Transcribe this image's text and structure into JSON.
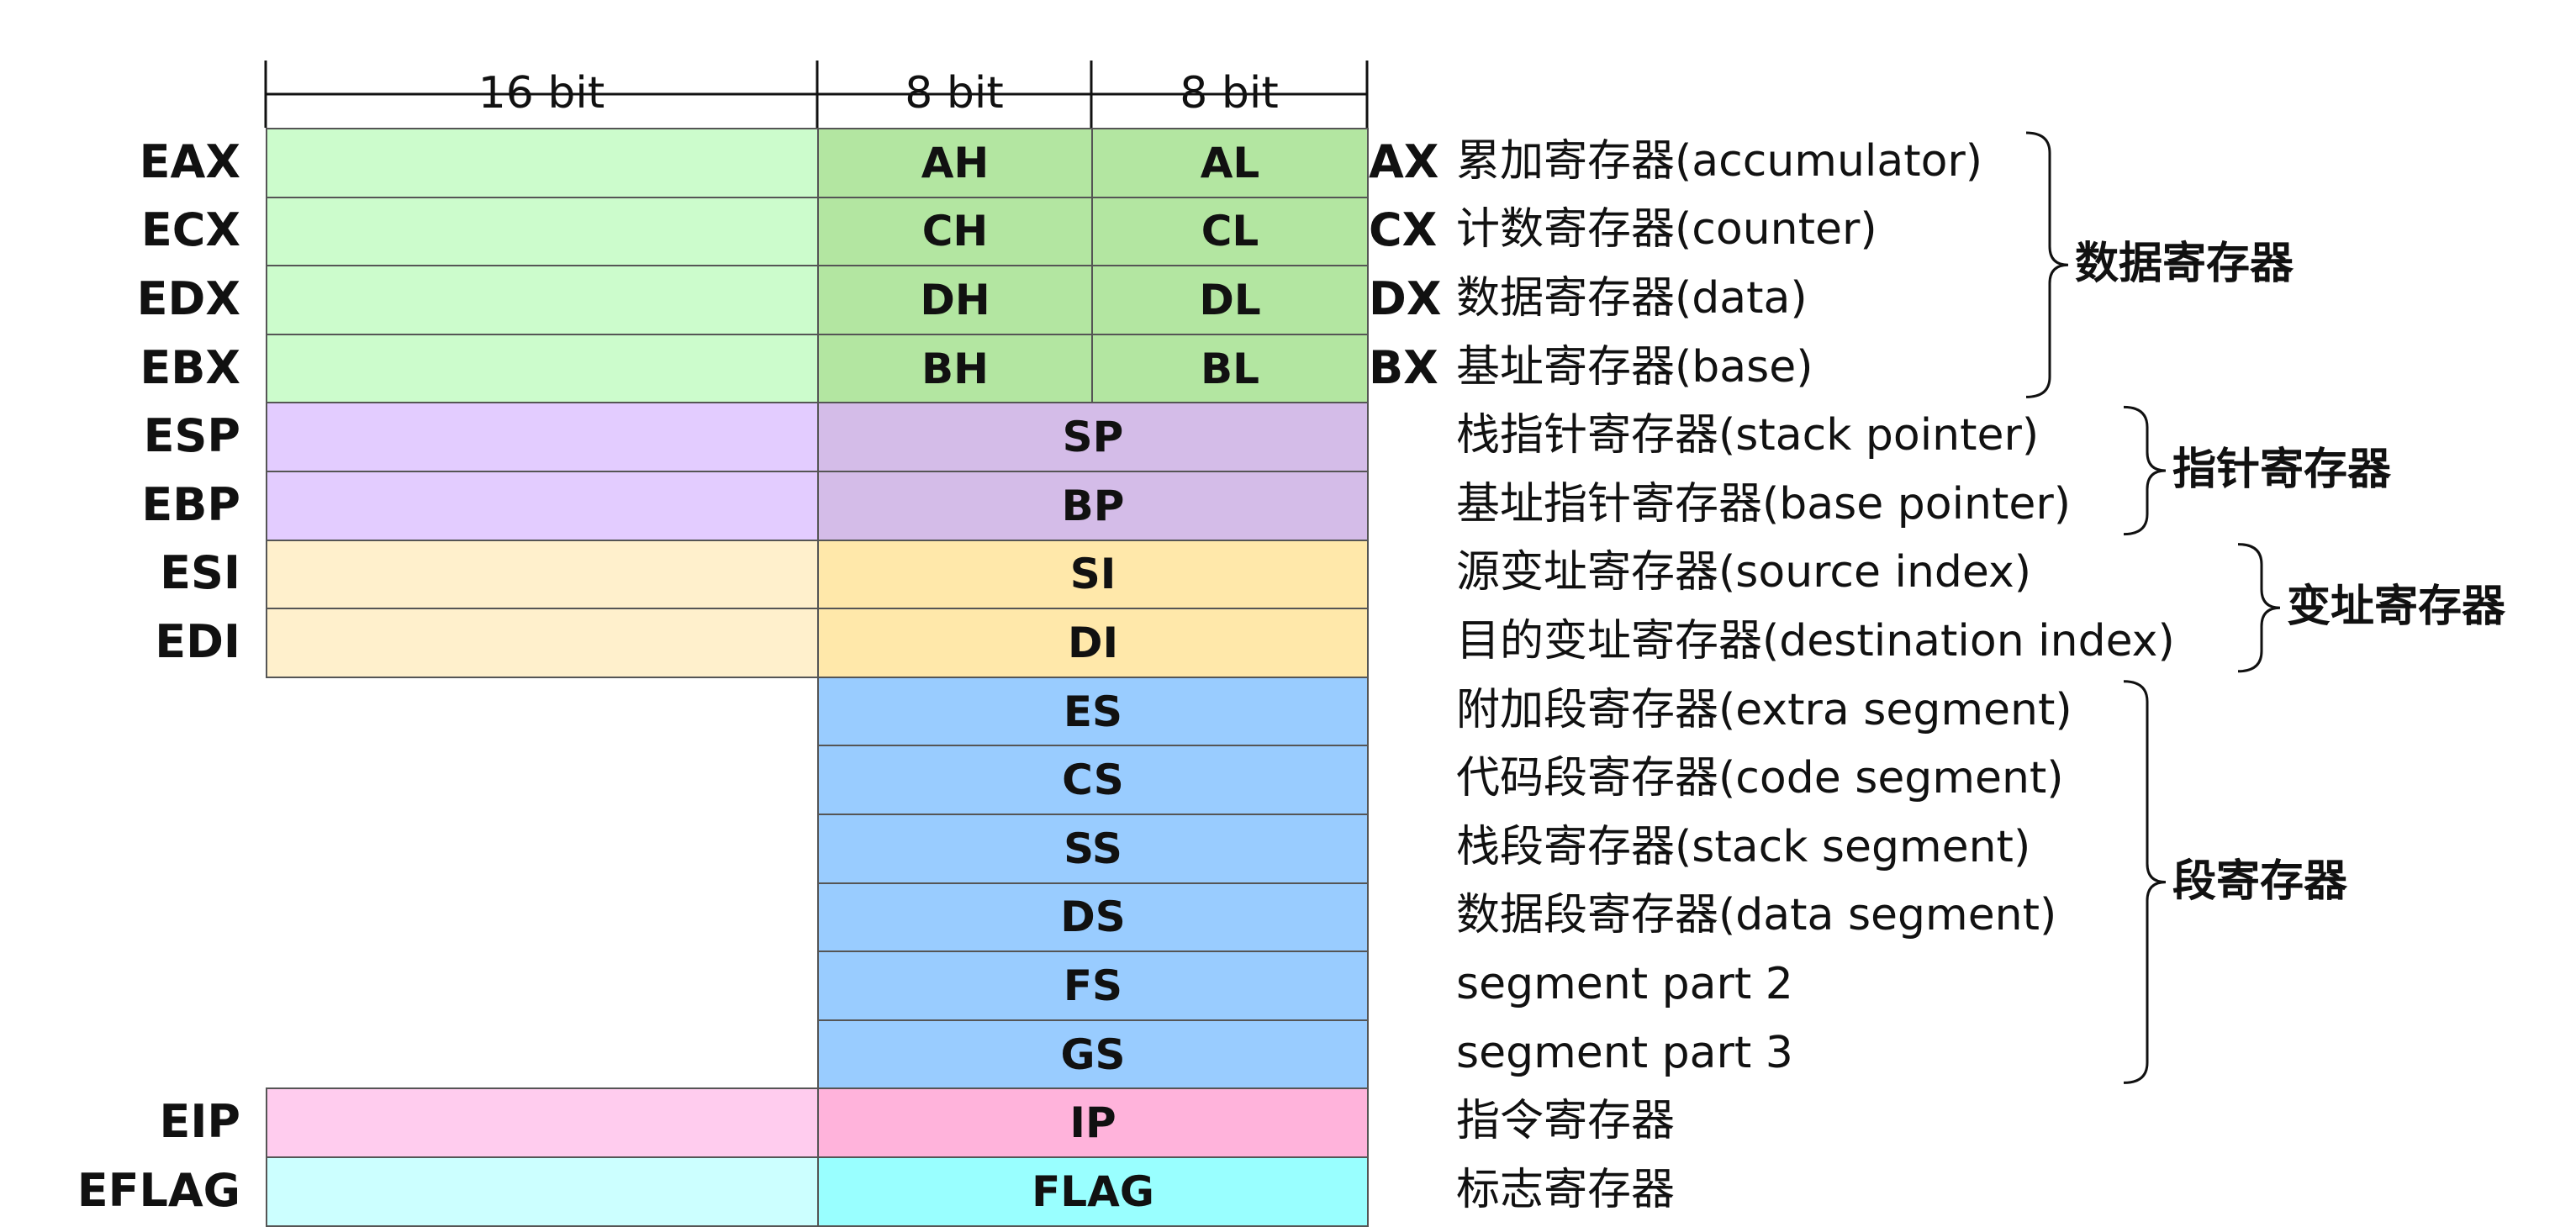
{
  "bit_labels": [
    "16 bit",
    "8 bit",
    "8 bit"
  ],
  "rows": [
    {
      "e": "EAX",
      "left": "",
      "mid": "AH",
      "right": "AL",
      "split": true,
      "short": "AX",
      "desc": "累加寄存器(accumulator)",
      "color_left": "#ccfccc",
      "color_mid": "#b3e6a1"
    },
    {
      "e": "ECX",
      "left": "",
      "mid": "CH",
      "right": "CL",
      "split": true,
      "short": "CX",
      "desc": "计数寄存器(counter)",
      "color_left": "#ccfccc",
      "color_mid": "#b3e6a1"
    },
    {
      "e": "EDX",
      "left": "",
      "mid": "DH",
      "right": "DL",
      "split": true,
      "short": "DX",
      "desc": "数据寄存器(data)",
      "color_left": "#ccfccc",
      "color_mid": "#b3e6a1"
    },
    {
      "e": "EBX",
      "left": "",
      "mid": "BH",
      "right": "BL",
      "split": true,
      "short": "BX",
      "desc": "基址寄存器(base)",
      "color_left": "#ccfccc",
      "color_mid": "#b3e6a1"
    },
    {
      "e": "ESP",
      "mid": "SP",
      "short": "",
      "desc": "栈指针寄存器(stack pointer)",
      "color_left": "#e3ccff",
      "color_mid": "#d4bce8"
    },
    {
      "e": "EBP",
      "mid": "BP",
      "short": "",
      "desc": "基址指针寄存器(base pointer)",
      "color_left": "#e3ccff",
      "color_mid": "#d4bce8"
    },
    {
      "e": "ESI",
      "mid": "SI",
      "short": "",
      "desc": "源变址寄存器(source index)",
      "color_left": "#fff0cc",
      "color_mid": "#ffe8aa"
    },
    {
      "e": "EDI",
      "mid": "DI",
      "short": "",
      "desc": "目的变址寄存器(destination index)",
      "color_left": "#fff0cc",
      "color_mid": "#ffe8aa"
    },
    {
      "e": "",
      "mid": "ES",
      "short": "",
      "desc": "附加段寄存器(extra segment)",
      "color_left": "",
      "color_mid": "#99ccff"
    },
    {
      "e": "",
      "mid": "CS",
      "short": "",
      "desc": "代码段寄存器(code segment)",
      "color_left": "",
      "color_mid": "#99ccff"
    },
    {
      "e": "",
      "mid": "SS",
      "short": "",
      "desc": "栈段寄存器(stack segment)",
      "color_left": "",
      "color_mid": "#99ccff"
    },
    {
      "e": "",
      "mid": "DS",
      "short": "",
      "desc": "数据段寄存器(data segment)",
      "color_left": "",
      "color_mid": "#99ccff"
    },
    {
      "e": "",
      "mid": "FS",
      "short": "",
      "desc": "segment part 2",
      "color_left": "",
      "color_mid": "#99ccff"
    },
    {
      "e": "",
      "mid": "GS",
      "short": "",
      "desc": "segment part 3",
      "color_left": "",
      "color_mid": "#99ccff"
    },
    {
      "e": "EIP",
      "mid": "IP",
      "short": "",
      "desc": "指令寄存器",
      "color_left": "#ffccee",
      "color_mid": "#ffb3db"
    },
    {
      "e": "EFLAG",
      "mid": "FLAG",
      "short": "",
      "desc": "标志寄存器",
      "color_left": "#ccffff",
      "color_mid": "#99ffff"
    }
  ],
  "groups": [
    {
      "label": "数据寄存器",
      "from": 0,
      "to": 3
    },
    {
      "label": "指针寄存器",
      "from": 4,
      "to": 5
    },
    {
      "label": "变址寄存器",
      "from": 6,
      "to": 7
    },
    {
      "label": "段寄存器",
      "from": 8,
      "to": 13
    }
  ]
}
